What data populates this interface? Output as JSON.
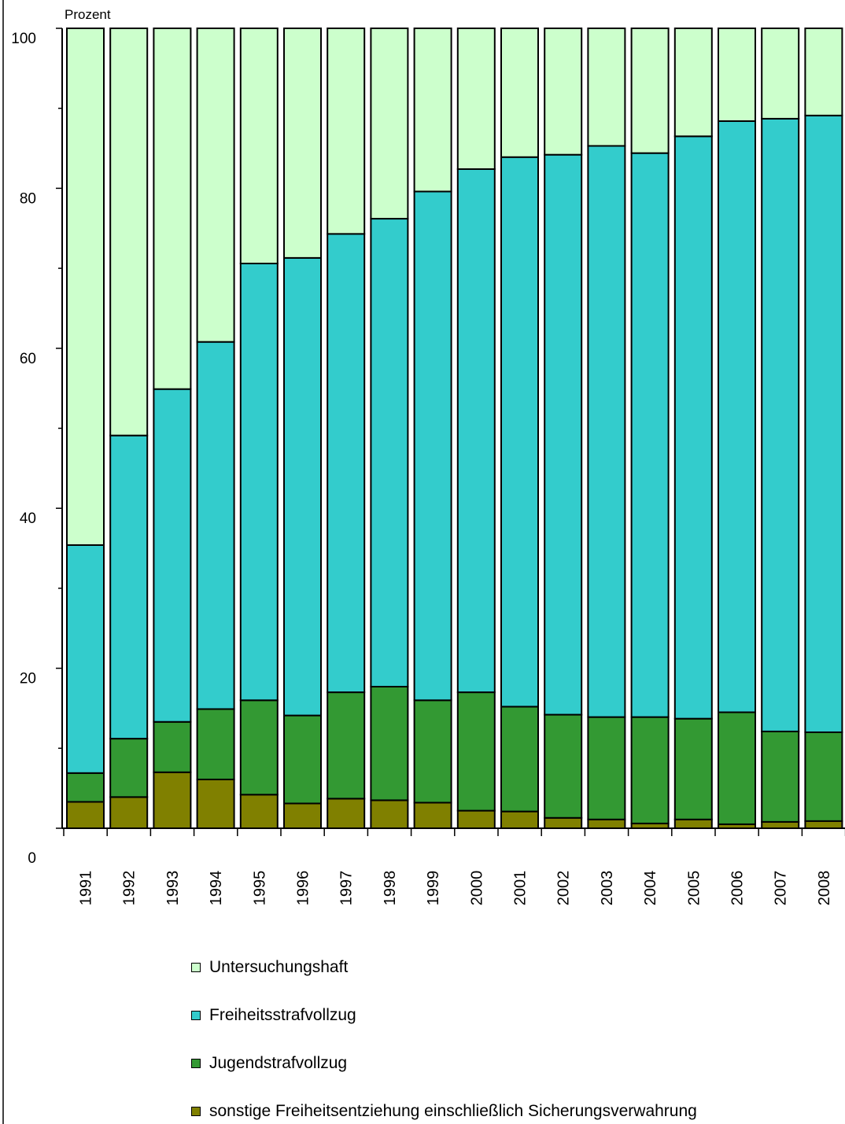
{
  "chart_data": {
    "type": "bar",
    "stacked": true,
    "ylabel": "Prozent",
    "xlabel": "",
    "ylim": [
      0,
      100
    ],
    "yticks": [
      "0",
      "20",
      "40",
      "60",
      "80",
      "100"
    ],
    "grid": false,
    "legend_position": "bottom",
    "categories": [
      "1991",
      "1992",
      "1993",
      "1994",
      "1995",
      "1996",
      "1997",
      "1998",
      "1999",
      "2000",
      "2001",
      "2002",
      "2003",
      "2004",
      "2005",
      "2006",
      "2007",
      "2008"
    ],
    "series": [
      {
        "name": "sonstige Freiheitsentziehung einschließlich Sicherungsverwahrung",
        "color": "#808000",
        "values": [
          3.3,
          3.9,
          7.0,
          6.1,
          4.2,
          3.1,
          3.7,
          3.5,
          3.2,
          2.2,
          2.1,
          1.3,
          1.1,
          0.6,
          1.1,
          0.5,
          0.8,
          0.9
        ]
      },
      {
        "name": "Jugendstrafvollzug",
        "color": "#339933",
        "values": [
          3.6,
          7.3,
          6.3,
          8.8,
          11.8,
          11.0,
          13.3,
          14.2,
          12.8,
          14.8,
          13.1,
          12.9,
          12.8,
          13.3,
          12.6,
          14.0,
          11.3,
          11.1
        ]
      },
      {
        "name": "Freiheitsstrafvollzug",
        "color": "#33CCCC",
        "values": [
          28.5,
          37.9,
          41.6,
          45.9,
          54.6,
          57.2,
          57.3,
          58.5,
          63.6,
          65.4,
          68.7,
          70.0,
          71.4,
          70.5,
          72.8,
          73.9,
          76.6,
          77.1
        ]
      },
      {
        "name": "Untersuchungshaft",
        "color": "#CCFFCC",
        "values": [
          64.6,
          50.9,
          45.1,
          39.2,
          29.4,
          28.7,
          25.7,
          23.8,
          20.4,
          17.6,
          16.1,
          15.8,
          14.7,
          15.6,
          13.5,
          11.6,
          11.3,
          10.9
        ]
      }
    ]
  },
  "legend": {
    "items": [
      {
        "label": "Untersuchungshaft",
        "color": "#CCFFCC"
      },
      {
        "label": "Freiheitsstrafvollzug",
        "color": "#33CCCC"
      },
      {
        "label": "Jugendstrafvollzug",
        "color": "#339933"
      },
      {
        "label": "sonstige Freiheitsentziehung einschließlich Sicherungsverwahrung",
        "color": "#808000"
      }
    ]
  }
}
